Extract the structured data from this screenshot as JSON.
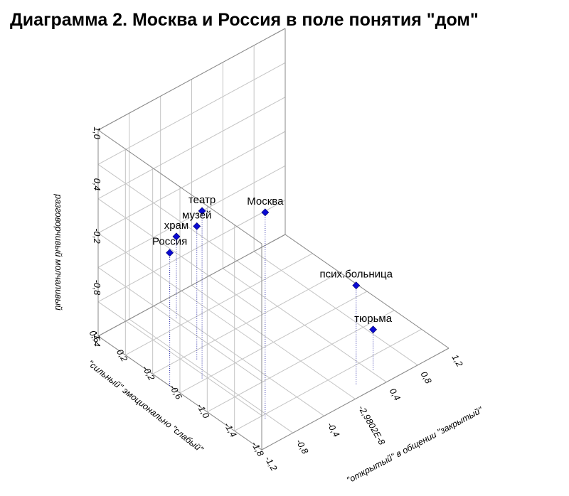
{
  "chart_data": {
    "type": "scatter",
    "title": "Диаграмма 2. Москва и Россия в поле понятия \"дом\"",
    "axes": {
      "x": {
        "label": "\"открытый\" в общении \"закрытый\"",
        "range": [
          -1.2,
          1.2
        ],
        "ticks": [
          "-1,2",
          "-0,8",
          "-0,4",
          "-2,9802E-8",
          "0,4",
          "0,8",
          "1,2"
        ]
      },
      "y": {
        "label": "\"сильный\" эмоционально \"слабый\"",
        "range": [
          -1.8,
          0.6
        ],
        "ticks": [
          "0,6",
          "0,2",
          "-0,2",
          "-0,6",
          "-1,0",
          "-1,4",
          "-1,8"
        ]
      },
      "z": {
        "label": "разговорчивый молчаливый",
        "range": [
          -1.4,
          1.0
        ],
        "ticks": [
          "1,0",
          "0,4",
          "-0,2",
          "-0,8",
          "-1,4"
        ]
      }
    },
    "grid": true,
    "points": [
      {
        "label": "Москва",
        "x": -0.85,
        "y": -1.45,
        "z": 1.0
      },
      {
        "label": "театр",
        "x": -0.89,
        "y": -0.57,
        "z": 0.55
      },
      {
        "label": "музей",
        "x": -0.73,
        "y": -0.31,
        "z": 0.15
      },
      {
        "label": "Россия",
        "x": -1.2,
        "y": -0.45,
        "z": 0.15
      },
      {
        "label": "храм",
        "x": -0.45,
        "y": 0.31,
        "z": -0.45
      },
      {
        "label": "псих.больница",
        "x": 0.16,
        "y": -1.63,
        "z": -0.25
      },
      {
        "label": "тюрьма",
        "x": 0.43,
        "y": -1.57,
        "z": -0.93
      }
    ]
  }
}
